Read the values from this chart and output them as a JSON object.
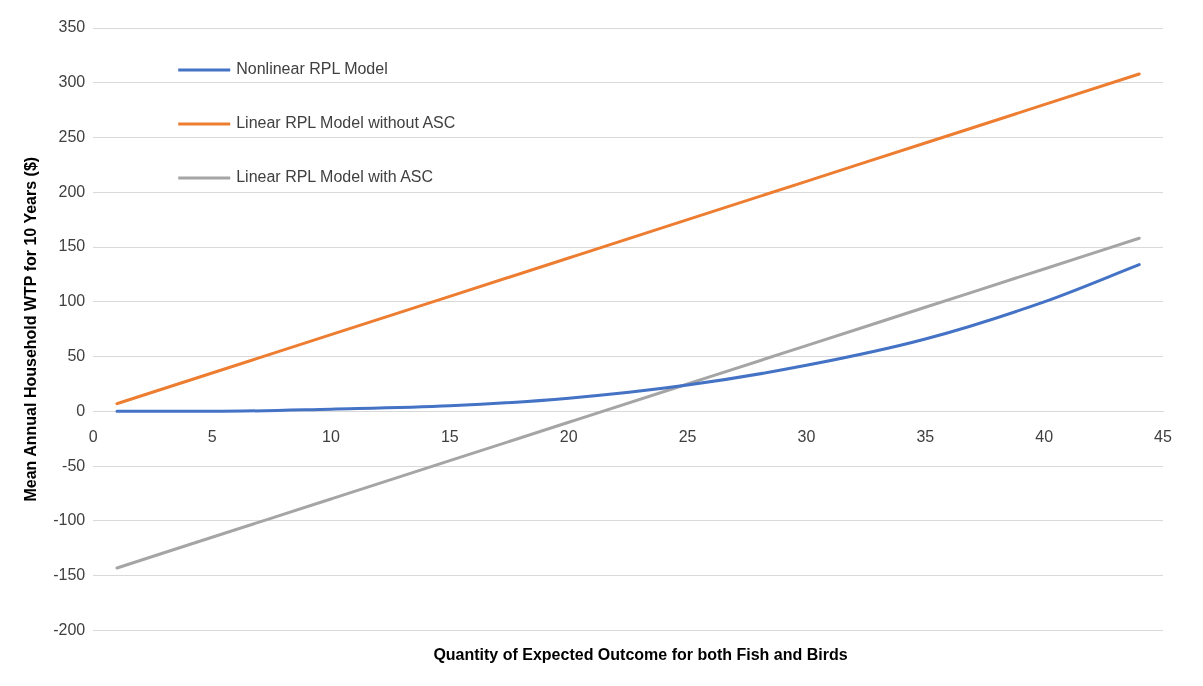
{
  "chart_data": {
    "type": "line",
    "xlabel": "Quantity of Expected Outcome for both Fish and Birds",
    "ylabel": "Mean Annual Household WTP for 10 Years ($)",
    "xlim": [
      0,
      45
    ],
    "xticks": [
      0,
      5,
      10,
      15,
      20,
      25,
      30,
      35,
      40,
      45
    ],
    "ylim": [
      -200,
      350
    ],
    "yticks": [
      -200,
      -150,
      -100,
      -50,
      0,
      50,
      100,
      150,
      200,
      250,
      300,
      350
    ],
    "grid": "y",
    "legend": "top left",
    "marker": "none",
    "line_style": "solid",
    "x": [
      1,
      5,
      10,
      15,
      20,
      25,
      30,
      35,
      40,
      44
    ],
    "series": [
      {
        "name": "Nonlinear RPL Model",
        "color": "#4472c4",
        "values": [
          0,
          0,
          2,
          5,
          12,
          24,
          42,
          66,
          100,
          134
        ]
      },
      {
        "name": "Linear RPL Model without ASC",
        "color": "#ed7d31",
        "values": [
          7,
          35,
          70,
          105,
          140,
          175,
          210,
          245,
          280,
          308
        ]
      },
      {
        "name": "Linear RPL Model with ASC",
        "color": "#a5a5a5",
        "values": [
          -143,
          -115,
          -80,
          -45,
          -10,
          25,
          60,
          95,
          130,
          158
        ]
      }
    ]
  }
}
